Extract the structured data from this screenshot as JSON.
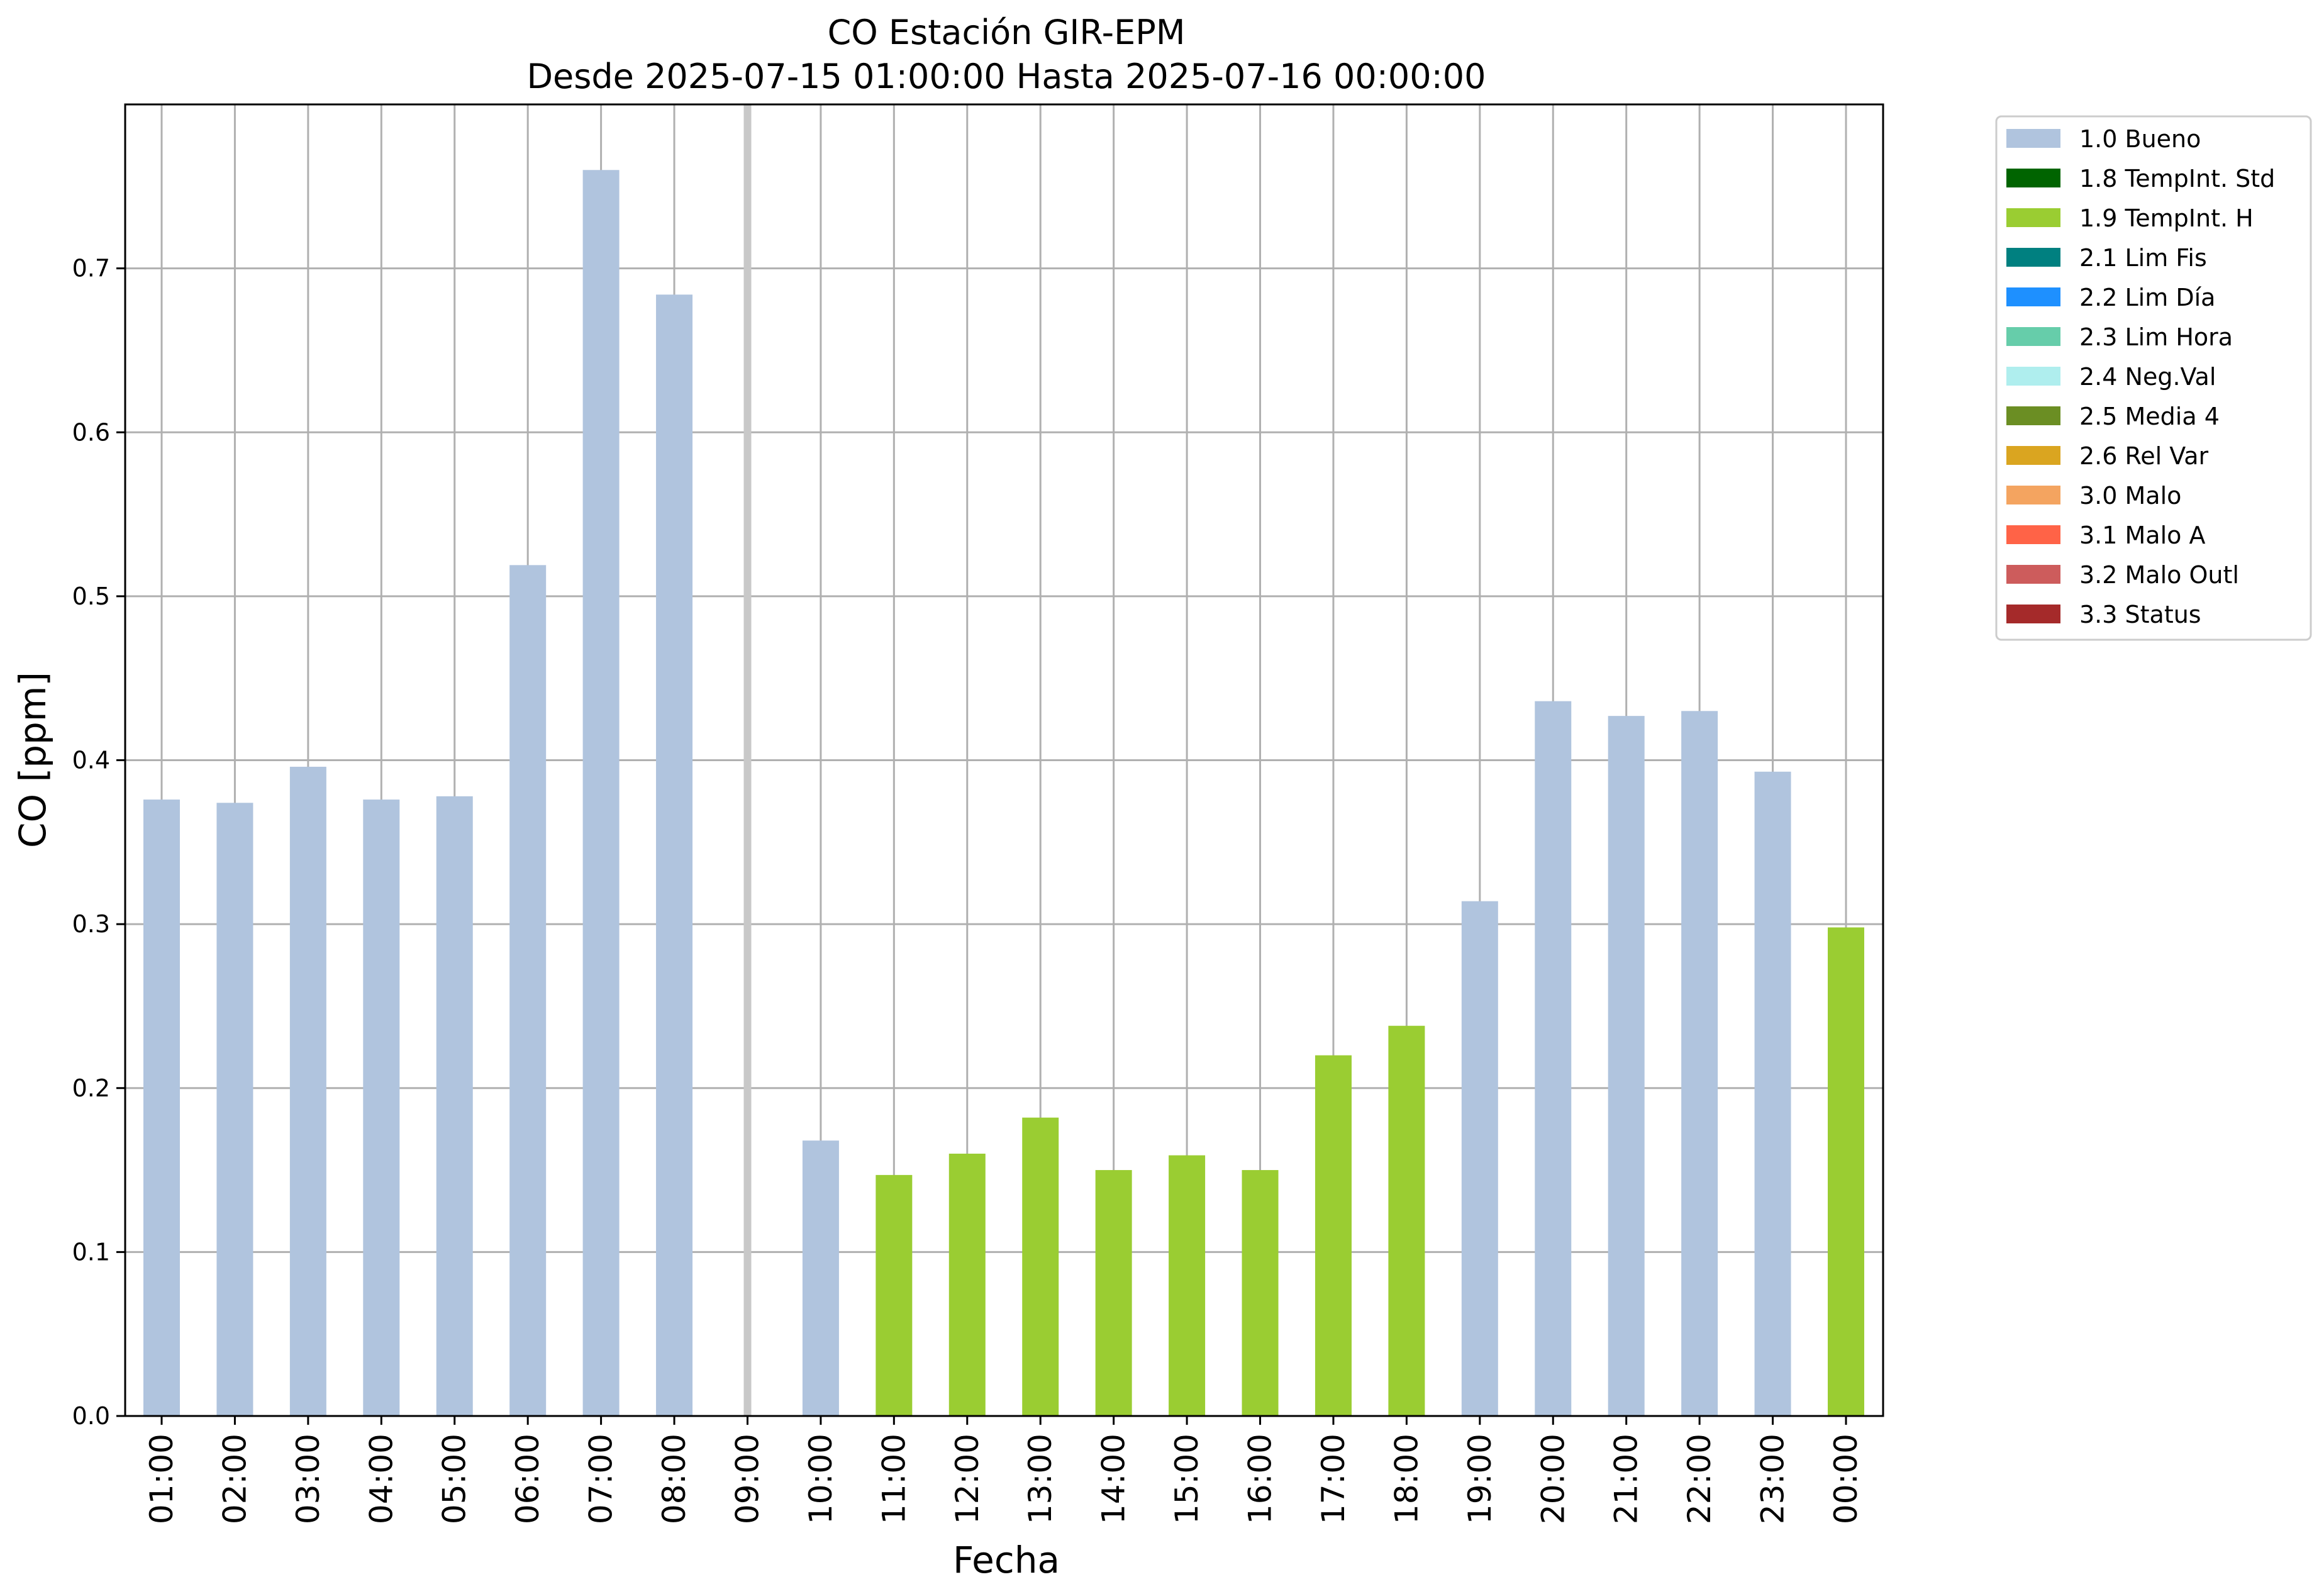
{
  "chart_data": {
    "type": "bar",
    "title": "CO Estación GIR-EPM",
    "subtitle": "Desde 2025-07-15 01:00:00 Hasta 2025-07-16 00:00:00",
    "xlabel": "Fecha",
    "ylabel": "CO [ppm]",
    "ylim": [
      0,
      0.8
    ],
    "yticks": [
      "0.0",
      "0.1",
      "0.2",
      "0.3",
      "0.4",
      "0.5",
      "0.6",
      "0.7"
    ],
    "grid": true,
    "legend_position": "outside-top-right",
    "categories": [
      "01:00",
      "02:00",
      "03:00",
      "04:00",
      "05:00",
      "06:00",
      "07:00",
      "08:00",
      "09:00",
      "10:00",
      "11:00",
      "12:00",
      "13:00",
      "14:00",
      "15:00",
      "16:00",
      "17:00",
      "18:00",
      "19:00",
      "20:00",
      "21:00",
      "22:00",
      "23:00",
      "00:00"
    ],
    "values": [
      0.376,
      0.374,
      0.396,
      0.376,
      0.378,
      0.519,
      0.76,
      0.684,
      null,
      0.168,
      0.147,
      0.16,
      0.182,
      0.15,
      0.159,
      0.15,
      0.22,
      0.238,
      0.314,
      0.436,
      0.427,
      0.43,
      0.393,
      0.298
    ],
    "flags": [
      "1.0 Bueno",
      "1.0 Bueno",
      "1.0 Bueno",
      "1.0 Bueno",
      "1.0 Bueno",
      "1.0 Bueno",
      "1.0 Bueno",
      "1.0 Bueno",
      null,
      "1.0 Bueno",
      "1.9 TempInt. H",
      "1.9 TempInt. H",
      "1.9 TempInt. H",
      "1.9 TempInt. H",
      "1.9 TempInt. H",
      "1.9 TempInt. H",
      "1.9 TempInt. H",
      "1.9 TempInt. H",
      "1.0 Bueno",
      "1.0 Bueno",
      "1.0 Bueno",
      "1.0 Bueno",
      "1.0 Bueno",
      "1.9 TempInt. H"
    ],
    "legend": [
      {
        "name": "1.0 Bueno",
        "color": "#b0c4de"
      },
      {
        "name": "1.8 TempInt. Std",
        "color": "#006400"
      },
      {
        "name": "1.9 TempInt. H",
        "color": "#9acd32"
      },
      {
        "name": "2.1 Lim Fis",
        "color": "#008080"
      },
      {
        "name": "2.2 Lim Día",
        "color": "#1e90ff"
      },
      {
        "name": "2.3 Lim Hora",
        "color": "#66cdaa"
      },
      {
        "name": "2.4 Neg.Val",
        "color": "#afeeee"
      },
      {
        "name": "2.5 Media 4",
        "color": "#6b8e23"
      },
      {
        "name": "2.6 Rel Var",
        "color": "#daa520"
      },
      {
        "name": "3.0 Malo",
        "color": "#f4a460"
      },
      {
        "name": "3.1 Malo A",
        "color": "#ff6347"
      },
      {
        "name": "3.2 Malo Outl",
        "color": "#cd5c5c"
      },
      {
        "name": "3.3 Status",
        "color": "#a52a2a"
      }
    ],
    "highlight_category": "09:00"
  }
}
